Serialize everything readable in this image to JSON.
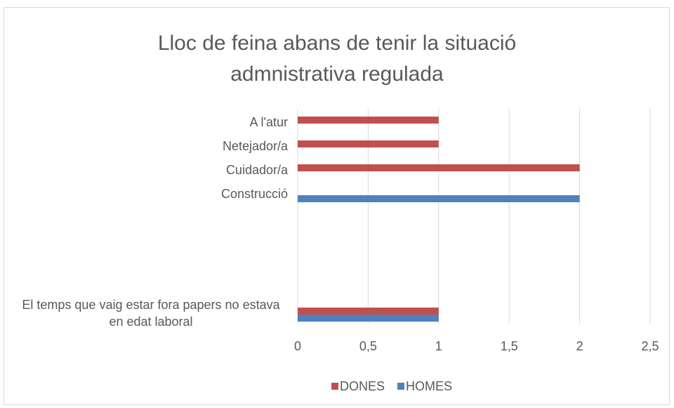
{
  "chart_data": {
    "type": "bar",
    "orientation": "horizontal",
    "title": "Lloc de feina abans de tenir la situació admnistrativa regulada",
    "categories": [
      "A l'atur",
      "Netejador/a",
      "Cuidador/a",
      "Construcció",
      null,
      null,
      null,
      null,
      "El temps que vaig estar fora papers no estava en edat laboral"
    ],
    "series": [
      {
        "name": "DONES",
        "color": "#c0504d",
        "values": [
          1,
          1,
          2,
          null,
          null,
          null,
          null,
          null,
          1
        ]
      },
      {
        "name": "HOMES",
        "color": "#4f81bd",
        "values": [
          null,
          null,
          null,
          2,
          null,
          null,
          null,
          null,
          1
        ]
      }
    ],
    "xlim": [
      0,
      2.5
    ],
    "xticks": [
      0,
      {
        "value": 0.5,
        "label": "0,5"
      },
      1,
      {
        "value": 1.5,
        "label": "1,5"
      },
      2,
      {
        "value": 2.5,
        "label": "2,5"
      }
    ],
    "grid": true,
    "legend": "bottom"
  }
}
